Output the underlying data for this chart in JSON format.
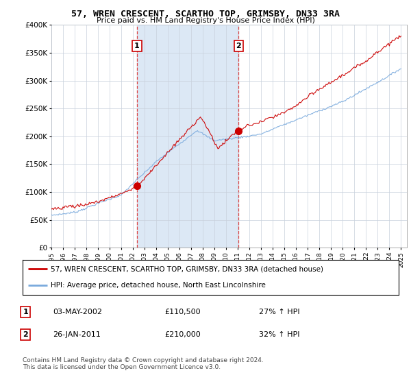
{
  "title": "57, WREN CRESCENT, SCARTHO TOP, GRIMSBY, DN33 3RA",
  "subtitle": "Price paid vs. HM Land Registry's House Price Index (HPI)",
  "ylim": [
    0,
    400000
  ],
  "yticks": [
    0,
    50000,
    100000,
    150000,
    200000,
    250000,
    300000,
    350000,
    400000
  ],
  "xlim_start": 1995.0,
  "xlim_end": 2025.5,
  "sale1_year": 2002.34,
  "sale1_price": 110500,
  "sale2_year": 2011.07,
  "sale2_price": 210000,
  "legend_line1": "57, WREN CRESCENT, SCARTHO TOP, GRIMSBY, DN33 3RA (detached house)",
  "legend_line2": "HPI: Average price, detached house, North East Lincolnshire",
  "footer": "Contains HM Land Registry data © Crown copyright and database right 2024.\nThis data is licensed under the Open Government Licence v3.0.",
  "background_color": "#ffffff",
  "plot_bg_color": "#ffffff",
  "grid_color": "#c8d0dc",
  "shade_color": "#dce8f5",
  "red_line_color": "#cc0000",
  "blue_line_color": "#7aaadd",
  "vline_color": "#dd4444"
}
